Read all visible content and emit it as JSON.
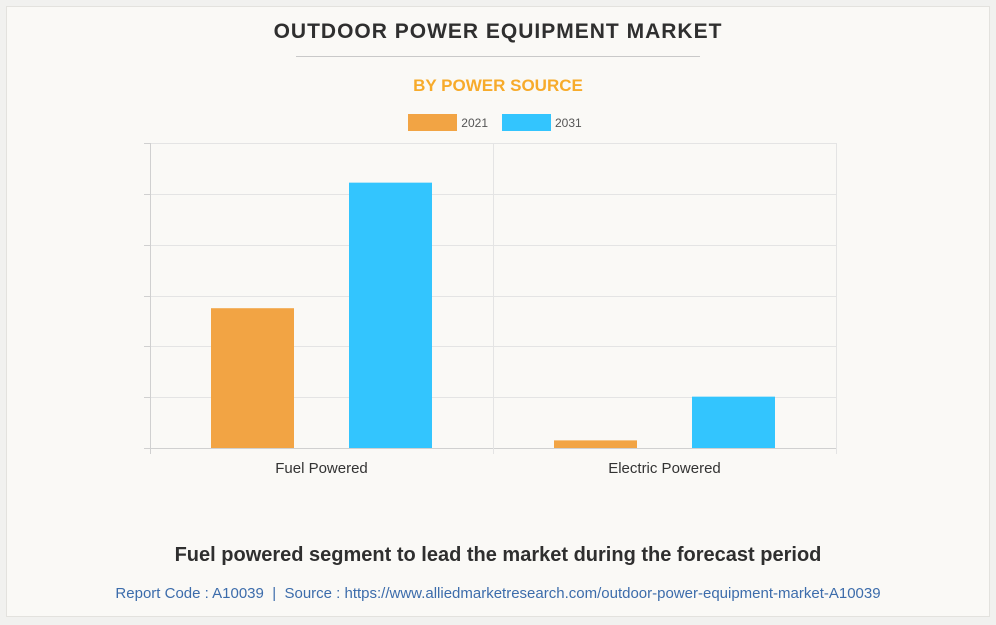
{
  "title": "OUTDOOR POWER EQUIPMENT MARKET",
  "subtitle": "BY POWER SOURCE",
  "footer": {
    "headline": "Fuel powered segment to lead the market during the forecast period",
    "report_code": "Report Code : A10039",
    "separator": "|",
    "source": "Source : https://www.alliedmarketresearch.com/outdoor-power-equipment-market-A10039"
  },
  "colors": {
    "series_2021": "#f2a444",
    "series_2031": "#33c5fe",
    "grid": "#e4e4e4",
    "axis": "#d0d0d0"
  },
  "chart_data": {
    "type": "bar",
    "title": "OUTDOOR POWER EQUIPMENT MARKET",
    "subtitle": "BY POWER SOURCE",
    "categories": [
      "Fuel Powered",
      "Electric Powered"
    ],
    "series": [
      {
        "name": "2021",
        "values": [
          27.5,
          1.5
        ]
      },
      {
        "name": "2031",
        "values": [
          52.2,
          10.1
        ]
      }
    ],
    "ylim": [
      0,
      60
    ],
    "gridlines": 6,
    "xlabel": "",
    "ylabel": "",
    "legend": "top-center",
    "grid": true
  }
}
